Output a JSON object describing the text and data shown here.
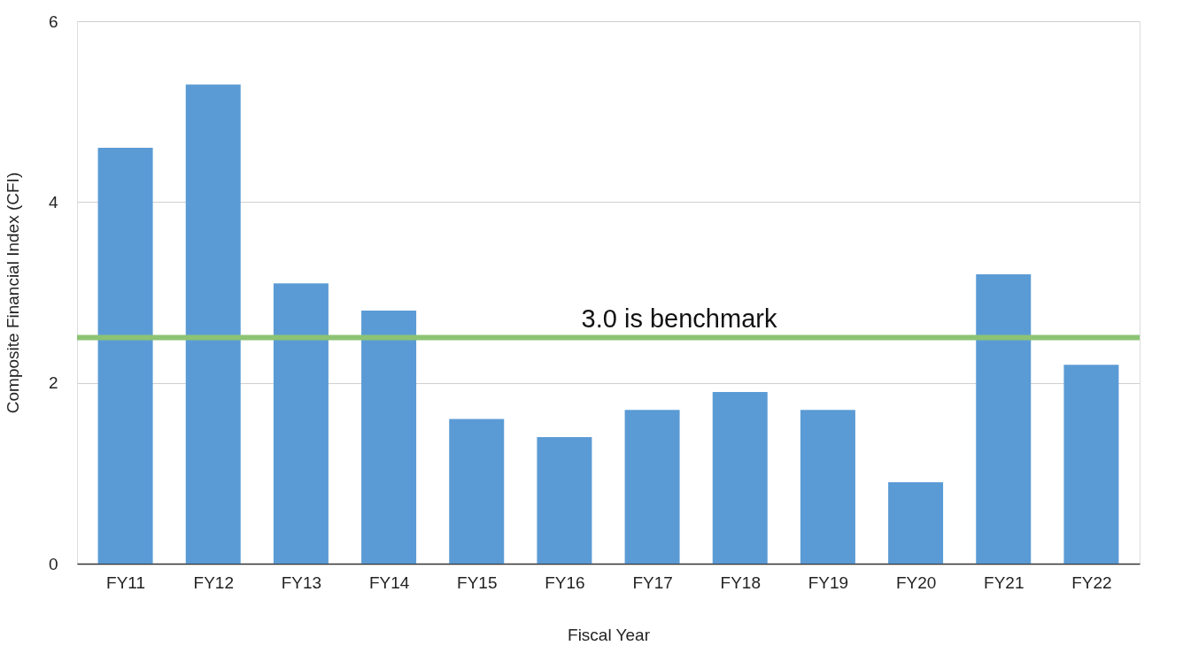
{
  "chart_data": {
    "type": "bar",
    "xlabel": "Fiscal Year",
    "ylabel": "Composite Financial Index (CFI)",
    "categories": [
      "FY11",
      "FY12",
      "FY13",
      "FY14",
      "FY15",
      "FY16",
      "FY17",
      "FY18",
      "FY19",
      "FY20",
      "FY21",
      "FY22"
    ],
    "values": [
      4.6,
      5.3,
      3.1,
      2.8,
      1.6,
      1.4,
      1.7,
      1.9,
      1.7,
      0.9,
      3.2,
      2.2
    ],
    "color": "#5b9bd5",
    "ylim": [
      0,
      6
    ],
    "yticks": [
      0,
      2,
      4,
      6
    ],
    "grid": "y",
    "ref_lines": [
      {
        "axis": "y",
        "value": 2.5,
        "label": "3.0 is benchmark",
        "color": "#8cc474"
      }
    ]
  }
}
